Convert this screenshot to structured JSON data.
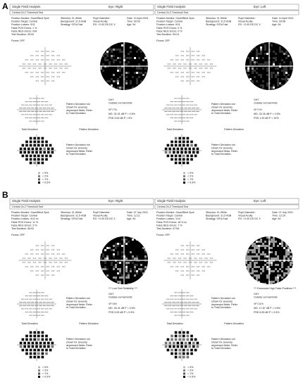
{
  "figure_labels": [
    "A",
    "B"
  ],
  "panels": [
    {
      "title": "Single Field Analysis",
      "eye": "Eye: Right",
      "test": "Central 24-2 Threshold Test",
      "info_left": [
        "Fixation Monitor: Gaze/Blind Spot",
        "Fixation Target: Central",
        "Fixation Losses: 0/11",
        "False POS Errors: 1 %",
        "False NEG Errors: N/A",
        "Test Duration: 05:09"
      ],
      "info_mid": [
        "Stimulus: III, White",
        "Background: 31.5 ASB",
        "Strategy: SITA-Fast"
      ],
      "info_right": [
        "Pupil Diameter:",
        "Visual Acuity:",
        "RX: +2.00 DS   DC X"
      ],
      "info_date": [
        "Date: 14 April 2021",
        "Time: 09:53",
        "Age: 54"
      ],
      "fovea": "Fovea: OFF",
      "reliability": null,
      "ght_label": "GHT",
      "ght": "Outside normal limits",
      "indices": [
        "VFI   7%",
        "MD  -31.91 dB P < 0.5%",
        "PSD   3.63 dB P < 5%"
      ],
      "note": [
        "Pattern Deviation not",
        "shown for severely",
        "depressed fields. Refer",
        "to Total Deviation."
      ],
      "total_label": "Total Deviation",
      "pattern_label": "Pattern Deviation",
      "legend": [
        "< 5%",
        "< 2%",
        "< 1%",
        "< 0.5%"
      ]
    },
    {
      "title": "Single Field Analysis",
      "eye": "Eye: Left",
      "test": "Central 24-2 Threshold Test",
      "info_left": [
        "Fixation Monitor: Gaze/Blind Spot",
        "Fixation Target: Central",
        "Fixation Losses: 0/11",
        "False POS Errors: 0 %",
        "False NEG Errors: 0 %",
        "Test Duration: 05:24"
      ],
      "info_mid": [
        "Stimulus: III, White",
        "Background: 31.5 ASB",
        "Strategy: SITA-Fast"
      ],
      "info_right": [
        "Pupil Diameter:",
        "Visual Acuity:",
        "RX: +2.00 DS   DC X"
      ],
      "info_date": [
        "Date: 14 April 2021",
        "Time: 09:58",
        "Age: 54"
      ],
      "fovea": "Fovea: OFF",
      "reliability": null,
      "ght_label": "GHT",
      "ght": "Outside normal limits",
      "indices": [
        "VFI   1%",
        "MD  -32.26 dB P < 0.5%",
        "PSD   1.90 dB P < 10%"
      ],
      "note": [
        "Pattern Deviation not",
        "shown for severely",
        "depressed fields. Refer",
        "to Total Deviation."
      ],
      "total_label": "Total Deviation",
      "pattern_label": "Pattern Deviation",
      "legend": [
        "< 5%",
        "< 2%",
        "< 1%",
        "< 0.5%"
      ]
    },
    {
      "title": "Single Field Analysis",
      "eye": "Eye: Right",
      "test": "Central 24-2 Threshold Test",
      "info_left": [
        "Fixation Monitor: Gaze/Blind Spot",
        "Fixation Target: Central",
        "Fixation Losses: 4/12 xx",
        "False POS Errors: 11 %",
        "False NEG Errors: 9 %",
        "Test Duration: 06:02"
      ],
      "info_mid": [
        "Stimulus: III, White",
        "Background: 31.5 ASB",
        "Strategy: SITA-Fast"
      ],
      "info_right": [
        "Pupil Diameter:",
        "Visual Acuity:",
        "RX: +2.00 DS   DC X"
      ],
      "info_date": [
        "Date: 07 July 2021",
        "Time: 12:11",
        "Age: 54"
      ],
      "fovea": "Fovea: OFF",
      "reliability": "*** Low Test Reliability ***",
      "ght_label": "GHT",
      "ght": "Outside normal limits",
      "indices": [
        "VFI   6%",
        "MD  -30.41 dB P < 0.5%",
        "PSD   5.59 dB P < 0.5%"
      ],
      "note": [
        "Pattern Deviation not",
        "shown for severely",
        "depressed fields. Refer",
        "to Total Deviation."
      ],
      "total_label": "Total Deviation",
      "pattern_label": "Pattern Deviation",
      "legend": [
        "< 5%",
        "< 2%",
        "< 1%",
        "< 0.5%"
      ]
    },
    {
      "title": "Single Field Analysis",
      "eye": "Eye: Left",
      "test": "Central 24-2 Threshold Test",
      "info_left": [
        "Fixation Monitor: Gaze/Blind Spot",
        "Fixation Target: Central",
        "Fixation Losses: 1/14",
        "False POS Errors: 18 % xx",
        "False NEG Errors: 7 %",
        "Test Duration: 07:08"
      ],
      "info_mid": [
        "Stimulus: III, White",
        "Background: 31.5 ASB",
        "Strategy: SITA-Fast"
      ],
      "info_right": [
        "Pupil Diameter:",
        "Visual Acuity:",
        "RX: +2.00 DS   DC X"
      ],
      "info_date": [
        "Date: 07 July 2021",
        "Time: 12:20",
        "Age: 54"
      ],
      "fovea": "Fovea: OFF",
      "reliability": "*** Excessive High False Positives ***",
      "ght_label": "GHT",
      "ght": "Outside normal limits",
      "indices": [
        "VFI   21%",
        "MD  -17.87 dB P < 0.5%",
        "PSD   6.59 dB P < 0.5%"
      ],
      "note": [
        "Pattern Deviation not",
        "shown for severely",
        "depressed fields. Refer",
        "to Total Deviation."
      ],
      "total_label": "Total Deviation",
      "pattern_label": "Pattern Deviation",
      "legend": [
        "< 5%",
        "< 2%",
        "< 1%",
        "< 0.5%"
      ]
    }
  ]
}
